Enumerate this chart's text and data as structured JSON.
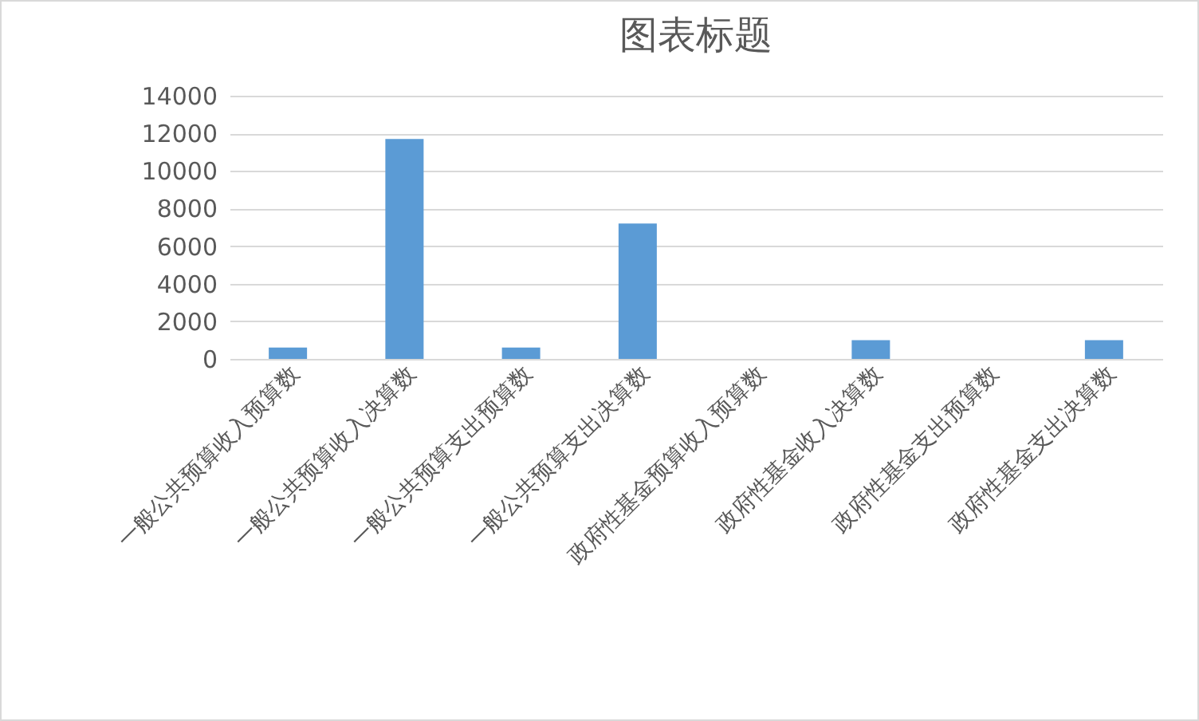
{
  "chart_data": {
    "type": "bar",
    "title": "图表标题",
    "categories": [
      "一般公共预算收入预算数",
      "一般公共预算收入决算数",
      "一般公共预算支出预算数",
      "一般公共预算支出决算数",
      "政府性基金预算收入预算数",
      "政府性基金收入决算数",
      "政府性基金支出预算数",
      "政府性基金支出决算数"
    ],
    "values": [
      600,
      11700,
      600,
      7200,
      0,
      1000,
      0,
      1000
    ],
    "color": "#5b9bd5",
    "ylim": [
      0,
      14000
    ],
    "yticks": [
      0,
      2000,
      4000,
      6000,
      8000,
      10000,
      12000,
      14000
    ],
    "grid": "y"
  }
}
